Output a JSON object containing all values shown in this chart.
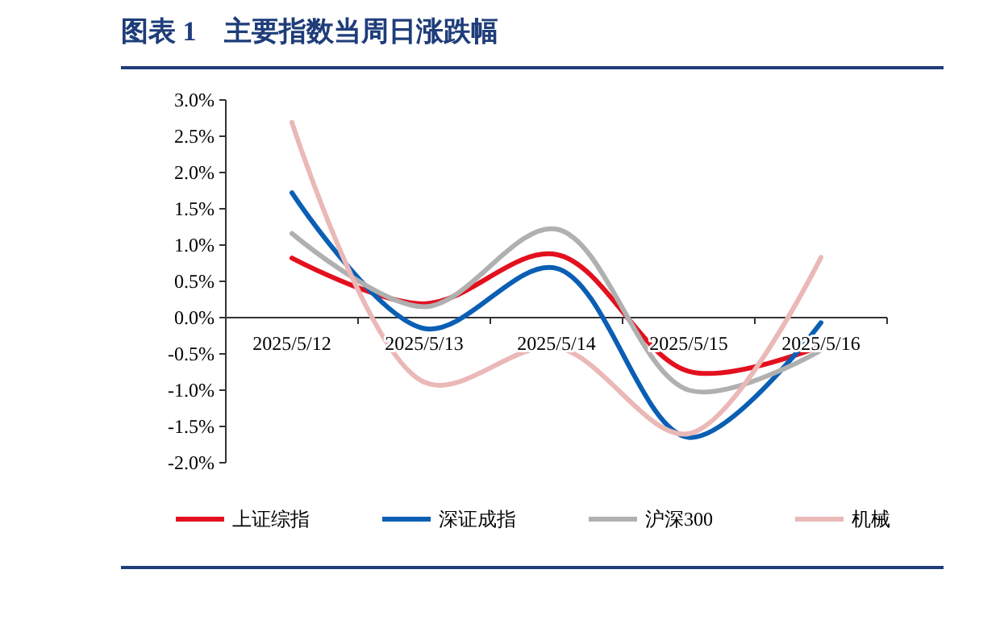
{
  "chart_data": {
    "type": "line",
    "title": "图表 1　主要指数当周日涨跌幅",
    "categories": [
      "2025/5/12",
      "2025/5/13",
      "2025/5/14",
      "2025/5/15",
      "2025/5/16"
    ],
    "series": [
      {
        "name": "上证综指",
        "color": "#e3101e",
        "values": [
          0.82,
          0.19,
          0.87,
          -0.74,
          -0.39
        ]
      },
      {
        "name": "深证成指",
        "color": "#0a5fb4",
        "values": [
          1.72,
          -0.15,
          0.68,
          -1.65,
          -0.07
        ]
      },
      {
        "name": "沪深300",
        "color": "#b0b0b0",
        "values": [
          1.16,
          0.15,
          1.22,
          -1.0,
          -0.45
        ]
      },
      {
        "name": "机械",
        "color": "#ebb8b8",
        "values": [
          2.69,
          -0.89,
          -0.41,
          -1.6,
          0.83
        ]
      }
    ],
    "ylim": [
      -2,
      3
    ],
    "yticks": [
      {
        "value": -2,
        "label": "-2.0%"
      },
      {
        "value": -1.5,
        "label": "-1.5%"
      },
      {
        "value": -1,
        "label": "-1.0%"
      },
      {
        "value": -0.5,
        "label": "-0.5%"
      },
      {
        "value": 0,
        "label": "0.0%"
      },
      {
        "value": 0.5,
        "label": "0.5%"
      },
      {
        "value": 1,
        "label": "1.0%"
      },
      {
        "value": 1.5,
        "label": "1.5%"
      },
      {
        "value": 2,
        "label": "2.0%"
      },
      {
        "value": 2.5,
        "label": "2.5%"
      },
      {
        "value": 3,
        "label": "3.0%"
      }
    ],
    "grid": false,
    "legend": "bottom",
    "marker": "none",
    "line_style": "solid"
  }
}
